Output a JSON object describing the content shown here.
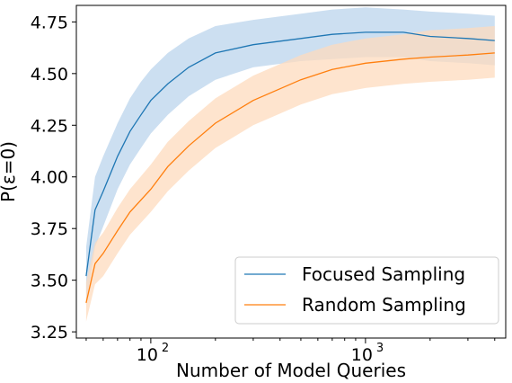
{
  "chart_data": {
    "type": "line",
    "xscale": "log",
    "xlabel": "Number of Model Queries",
    "ylabel": "P(ε=0)",
    "xlim": [
      45,
      4500
    ],
    "ylim": [
      3.22,
      4.83
    ],
    "x_ticks": [
      {
        "value": 100,
        "label": "10",
        "exp": "2"
      },
      {
        "value": 1000,
        "label": "10",
        "exp": "3"
      }
    ],
    "y_ticks": [
      {
        "value": 3.25,
        "label": "3.25"
      },
      {
        "value": 3.5,
        "label": "3.50"
      },
      {
        "value": 3.75,
        "label": "3.75"
      },
      {
        "value": 4.0,
        "label": "4.00"
      },
      {
        "value": 4.25,
        "label": "4.25"
      },
      {
        "value": 4.5,
        "label": "4.50"
      },
      {
        "value": 4.75,
        "label": "4.75"
      }
    ],
    "grid": false,
    "legend_position": "lower-right",
    "series": [
      {
        "name": "Focused Sampling",
        "color": "#1f77b4",
        "band_color": "#c6dcef",
        "points": [
          [
            50,
            3.52,
            3.38,
            3.66
          ],
          [
            55,
            3.84,
            3.66,
            4.0
          ],
          [
            60,
            3.93,
            3.76,
            4.1
          ],
          [
            70,
            4.1,
            3.94,
            4.26
          ],
          [
            80,
            4.22,
            4.06,
            4.38
          ],
          [
            90,
            4.3,
            4.14,
            4.46
          ],
          [
            100,
            4.37,
            4.21,
            4.52
          ],
          [
            120,
            4.45,
            4.3,
            4.6
          ],
          [
            150,
            4.53,
            4.39,
            4.67
          ],
          [
            200,
            4.6,
            4.47,
            4.73
          ],
          [
            300,
            4.64,
            4.53,
            4.76
          ],
          [
            500,
            4.67,
            4.56,
            4.79
          ],
          [
            700,
            4.69,
            4.57,
            4.81
          ],
          [
            1000,
            4.7,
            4.58,
            4.82
          ],
          [
            1500,
            4.7,
            4.58,
            4.81
          ],
          [
            2000,
            4.68,
            4.56,
            4.8
          ],
          [
            3000,
            4.67,
            4.55,
            4.79
          ],
          [
            4000,
            4.66,
            4.54,
            4.78
          ]
        ]
      },
      {
        "name": "Random Sampling",
        "color": "#ff7f0e",
        "band_color": "#fddbbd",
        "points": [
          [
            50,
            3.39,
            3.3,
            3.49
          ],
          [
            55,
            3.58,
            3.48,
            3.68
          ],
          [
            60,
            3.63,
            3.52,
            3.73
          ],
          [
            70,
            3.74,
            3.63,
            3.85
          ],
          [
            80,
            3.83,
            3.72,
            3.94
          ],
          [
            100,
            3.94,
            3.83,
            4.06
          ],
          [
            120,
            4.05,
            3.93,
            4.17
          ],
          [
            150,
            4.15,
            4.03,
            4.27
          ],
          [
            200,
            4.26,
            4.14,
            4.38
          ],
          [
            300,
            4.37,
            4.25,
            4.49
          ],
          [
            500,
            4.47,
            4.35,
            4.59
          ],
          [
            700,
            4.52,
            4.4,
            4.64
          ],
          [
            1000,
            4.55,
            4.43,
            4.67
          ],
          [
            1500,
            4.57,
            4.45,
            4.69
          ],
          [
            2000,
            4.58,
            4.46,
            4.71
          ],
          [
            3000,
            4.59,
            4.47,
            4.72
          ],
          [
            4000,
            4.6,
            4.48,
            4.73
          ]
        ]
      }
    ]
  }
}
